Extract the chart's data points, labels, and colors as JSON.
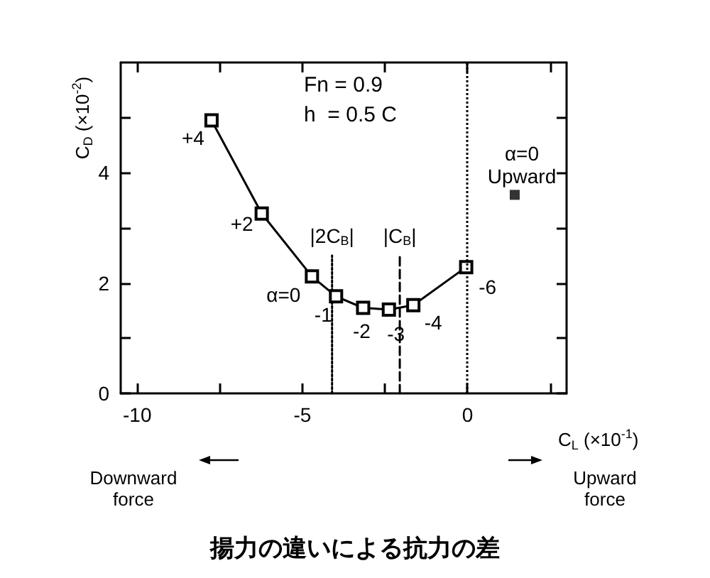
{
  "chart_data": {
    "type": "line",
    "title": "揚力の違いによる抗力の差",
    "xlabel": "C$_{L}$ (×10$^{-1}$)",
    "ylabel": "C$_{D}$ (×10$^{-2}$)",
    "xlim": [
      -10.5,
      3
    ],
    "ylim": [
      0,
      6
    ],
    "xticks": [
      -10,
      {
        "value": -7.5,
        "label": null
      },
      -5,
      {
        "value": -2.5,
        "label": null
      },
      0,
      {
        "value": 2.5,
        "label": null
      }
    ],
    "yticks": [
      0,
      {
        "value": 1,
        "label": null
      },
      2,
      {
        "value": 3,
        "label": null
      },
      4,
      {
        "value": 5,
        "label": null
      }
    ],
    "grid": false,
    "marker": "square",
    "line_style": "solid",
    "series": [
      {
        "color": "#000000",
        "x": [
          -7.75,
          -6.23,
          -4.71,
          -3.98,
          -3.16,
          -2.38,
          -1.64,
          -0.04
        ],
        "values": [
          4.95,
          3.26,
          2.12,
          1.76,
          1.55,
          1.52,
          1.6,
          2.29
        ]
      },
      {
        "type": "scatter",
        "color": "#000000",
        "x": [
          1.43
        ],
        "values": [
          3.6
        ]
      },
      {
        "type": "line",
        "color": "#000000",
        "marker": "none",
        "line_style": "dotted",
        "x": [
          -4.1,
          -4.1
        ],
        "values": [
          0,
          2.5
        ]
      },
      {
        "type": "line",
        "color": "#000000",
        "marker": "none",
        "line_style": "dashed",
        "x": [
          -2.05,
          -2.05
        ],
        "values": [
          0,
          2.5
        ]
      }
    ],
    "ref_lines": [
      {
        "axis": "x",
        "value": 0,
        "label": null,
        "color": "#000000",
        "line_style": "dotted"
      }
    ],
    "annotations": [
      "Fn = 0.9",
      "h  = 0.5 C",
      "Downward\nforce",
      "Upward\nforce",
      {
        "text": "+4",
        "x": -7.75,
        "y": 4.95
      },
      {
        "text": "+2",
        "x": -6.23,
        "y": 3.26
      },
      {
        "text": "α=0",
        "x": -4.71,
        "y": 2.12
      },
      {
        "text": "-1",
        "x": -3.98,
        "y": 1.76
      },
      {
        "text": "-2",
        "x": -3.16,
        "y": 1.55
      },
      {
        "text": "-3",
        "x": -2.38,
        "y": 1.52
      },
      {
        "text": "-4",
        "x": -1.64,
        "y": 1.6
      },
      {
        "text": "-6",
        "x": -0.04,
        "y": 2.29
      },
      {
        "text": "α=0\nUpward",
        "x": 1.43,
        "y": 3.6
      },
      {
        "text": "|2C$_{B}$|",
        "x": -4.1,
        "y": 2.5
      },
      {
        "text": "|C$_{B}$|",
        "x": -2.05,
        "y": 2.5
      }
    ]
  }
}
